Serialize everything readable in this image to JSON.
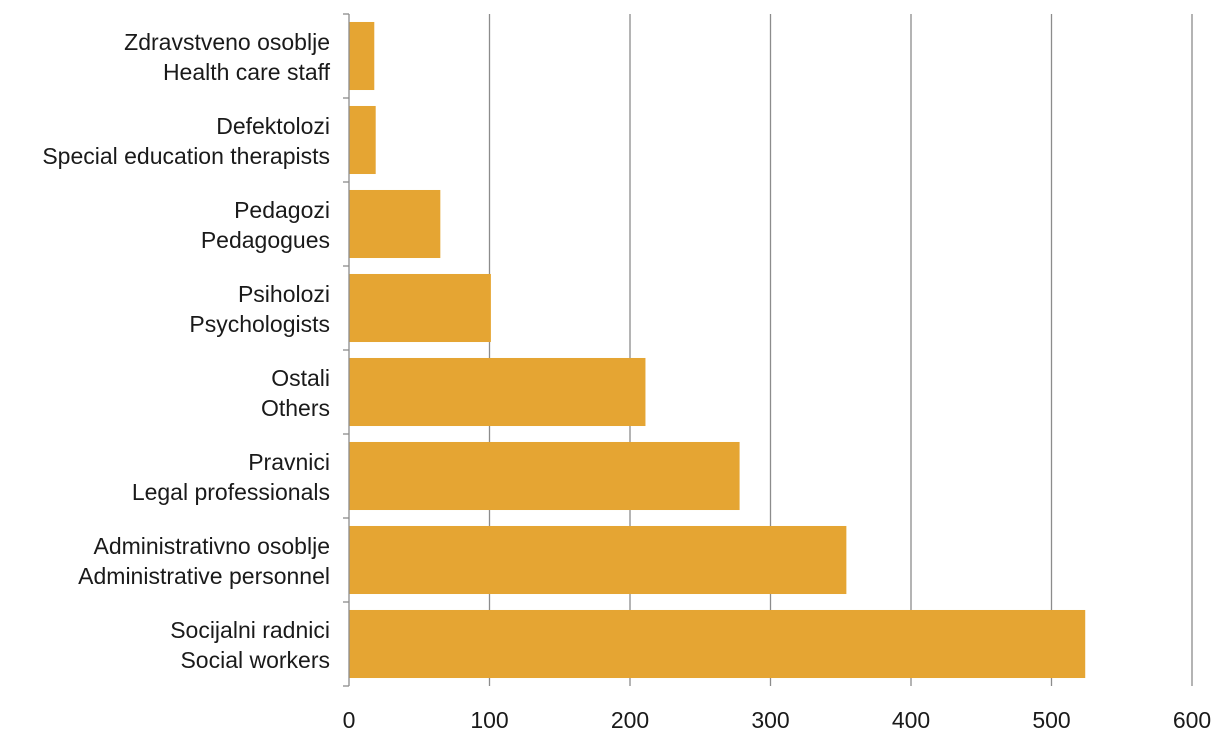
{
  "chart_data": {
    "type": "bar",
    "orientation": "horizontal",
    "categories": [
      {
        "line1": "Zdravstveno osoblje",
        "line2": "Health care staff"
      },
      {
        "line1": "Defektolozi",
        "line2": "Special education therapists"
      },
      {
        "line1": "Pedagozi",
        "line2": "Pedagogues"
      },
      {
        "line1": "Psiholozi",
        "line2": "Psychologists"
      },
      {
        "line1": "Ostali",
        "line2": "Others"
      },
      {
        "line1": "Pravnici",
        "line2": "Legal professionals"
      },
      {
        "line1": "Administrativno osoblje",
        "line2": "Administrative personnel"
      },
      {
        "line1": "Socijalni radnici",
        "line2": "Social workers"
      }
    ],
    "values": [
      18,
      19,
      65,
      101,
      211,
      278,
      354,
      524
    ],
    "xlim": [
      0,
      600
    ],
    "x_ticks": [
      0,
      100,
      200,
      300,
      400,
      500,
      600
    ],
    "x_tick_labels": [
      "0",
      "100",
      "200",
      "300",
      "400",
      "500",
      "600"
    ],
    "grid": "vertical",
    "bar_color": "#E5A533",
    "grid_color": "#8c8c8c",
    "axis_color": "#8c8c8c"
  }
}
